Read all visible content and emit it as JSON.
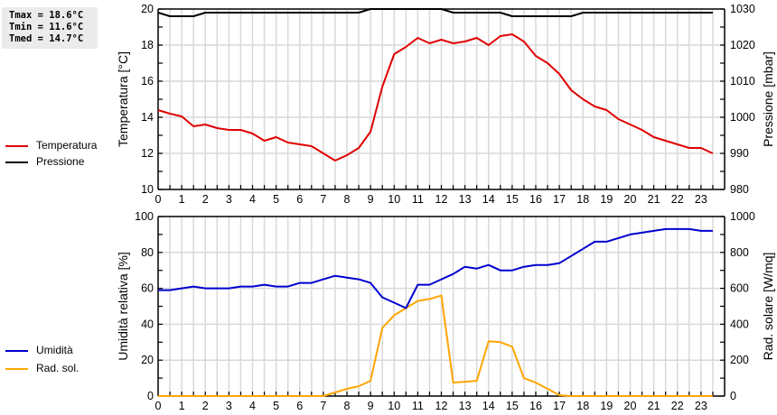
{
  "stats": {
    "tmax": "Tmax = 18.6°C",
    "tmin": "Tmin = 11.6°C",
    "tmed": "Tmed = 14.7°C"
  },
  "legend_top": [
    {
      "label": "Temperatura",
      "color": "#e00000"
    },
    {
      "label": "Pressione",
      "color": "#000000"
    }
  ],
  "legend_bottom": [
    {
      "label": "Umidità",
      "color": "#0000d0"
    },
    {
      "label": "Rad. sol.",
      "color": "#ffa500"
    }
  ],
  "chart_data": [
    {
      "type": "line",
      "title": "",
      "xlabel": "",
      "ylabel": "Temperatura [°C]",
      "y2label": "Pressione [mbar]",
      "ylim": [
        10,
        20
      ],
      "y2lim": [
        980,
        1030
      ],
      "yticks": [
        10,
        12,
        14,
        16,
        18,
        20
      ],
      "y2ticks": [
        980,
        990,
        1000,
        1010,
        1020,
        1030
      ],
      "xticks": [
        0,
        1,
        2,
        3,
        4,
        5,
        6,
        7,
        8,
        9,
        10,
        11,
        12,
        13,
        14,
        15,
        16,
        17,
        18,
        19,
        20,
        21,
        22,
        23
      ],
      "grid": true,
      "legend_position": "left",
      "x": [
        0,
        0.5,
        1,
        1.5,
        2,
        2.5,
        3,
        3.5,
        4,
        4.5,
        5,
        5.5,
        6,
        6.5,
        7,
        7.5,
        8,
        8.5,
        9,
        9.5,
        10,
        10.5,
        11,
        11.5,
        12,
        12.5,
        13,
        13.5,
        14,
        14.5,
        15,
        15.5,
        16,
        16.5,
        17,
        17.5,
        18,
        18.5,
        19,
        19.5,
        20,
        20.5,
        21,
        21.5,
        22,
        22.5,
        23,
        23.5
      ],
      "series": [
        {
          "name": "Temperatura",
          "axis": "left",
          "color": "#e00000",
          "values": [
            14.4,
            14.2,
            14.05,
            13.5,
            13.6,
            13.4,
            13.3,
            13.3,
            13.1,
            12.7,
            12.9,
            12.6,
            12.5,
            12.4,
            12.0,
            11.6,
            11.9,
            12.3,
            13.2,
            15.7,
            17.5,
            17.9,
            18.4,
            18.1,
            18.3,
            18.1,
            18.2,
            18.4,
            18.0,
            18.5,
            18.6,
            18.2,
            17.4,
            17.0,
            16.4,
            15.5,
            15.0,
            14.6,
            14.4,
            13.9,
            13.6,
            13.3,
            12.9,
            12.7,
            12.5,
            12.3,
            12.3,
            12.0
          ]
        },
        {
          "name": "Pressione",
          "axis": "right",
          "color": "#000000",
          "values": [
            1029,
            1028,
            1028,
            1028,
            1029,
            1029,
            1029,
            1029,
            1029,
            1029,
            1029,
            1029,
            1029,
            1029,
            1029,
            1029,
            1029,
            1029,
            1030,
            1030,
            1030,
            1030,
            1030,
            1030,
            1030,
            1029,
            1029,
            1029,
            1029,
            1029,
            1028,
            1028,
            1028,
            1028,
            1028,
            1028,
            1029,
            1029,
            1029,
            1029,
            1029,
            1029,
            1029,
            1029,
            1029,
            1029,
            1029,
            1029
          ]
        }
      ]
    },
    {
      "type": "line",
      "title": "",
      "xlabel": "",
      "ylabel": "Umidità relativa [%]",
      "y2label": "Rad. solare [W/mq]",
      "ylim": [
        0,
        100
      ],
      "y2lim": [
        0,
        1000
      ],
      "yticks": [
        0,
        20,
        40,
        60,
        80,
        100
      ],
      "y2ticks": [
        0,
        200,
        400,
        600,
        800,
        1000
      ],
      "xticks": [
        0,
        1,
        2,
        3,
        4,
        5,
        6,
        7,
        8,
        9,
        10,
        11,
        12,
        13,
        14,
        15,
        16,
        17,
        18,
        19,
        20,
        21,
        22,
        23
      ],
      "grid": true,
      "legend_position": "left",
      "x": [
        0,
        0.5,
        1,
        1.5,
        2,
        2.5,
        3,
        3.5,
        4,
        4.5,
        5,
        5.5,
        6,
        6.5,
        7,
        7.5,
        8,
        8.5,
        9,
        9.5,
        10,
        10.5,
        11,
        11.5,
        12,
        12.5,
        13,
        13.5,
        14,
        14.5,
        15,
        15.5,
        16,
        16.5,
        17,
        17.5,
        18,
        18.5,
        19,
        19.5,
        20,
        20.5,
        21,
        21.5,
        22,
        22.5,
        23,
        23.5
      ],
      "series": [
        {
          "name": "Umidità",
          "axis": "left",
          "color": "#0000d0",
          "values": [
            59,
            59,
            60,
            61,
            60,
            60,
            60,
            61,
            61,
            62,
            61,
            61,
            63,
            63,
            65,
            67,
            66,
            65,
            63,
            55,
            52,
            49,
            62,
            62,
            65,
            68,
            72,
            71,
            73,
            70,
            70,
            72,
            73,
            73,
            74,
            78,
            82,
            86,
            86,
            88,
            90,
            91,
            92,
            93,
            93,
            93,
            92,
            92
          ]
        },
        {
          "name": "Rad. sol.",
          "axis": "right",
          "color": "#ffa500",
          "values": [
            0,
            0,
            0,
            0,
            0,
            0,
            0,
            0,
            0,
            0,
            0,
            0,
            0,
            0,
            0,
            20,
            40,
            55,
            85,
            380,
            450,
            490,
            530,
            540,
            560,
            75,
            80,
            85,
            305,
            300,
            275,
            100,
            75,
            40,
            5,
            0,
            0,
            0,
            0,
            0,
            0,
            0,
            0,
            0,
            0,
            0,
            0,
            0
          ]
        }
      ]
    }
  ]
}
